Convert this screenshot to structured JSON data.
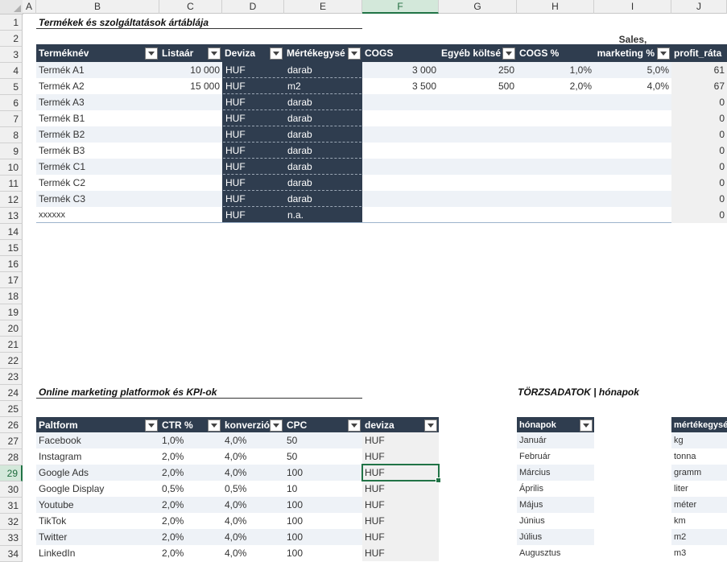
{
  "columns": [
    "A",
    "B",
    "C",
    "D",
    "E",
    "F",
    "G",
    "H",
    "I",
    "J"
  ],
  "rows": [
    "1",
    "2",
    "3",
    "4",
    "5",
    "6",
    "7",
    "8",
    "9",
    "10",
    "11",
    "12",
    "13",
    "14",
    "15",
    "16",
    "17",
    "18",
    "19",
    "20",
    "21",
    "22",
    "23",
    "24",
    "25",
    "26",
    "27",
    "28",
    "29",
    "30",
    "31",
    "32",
    "33",
    "34"
  ],
  "pricelist": {
    "title": "Termékek és szolgáltatások ártáblája",
    "headers": [
      "Terméknév",
      "Listaár",
      "Deviza",
      "Mértékegysé",
      "COGS",
      "Egyéb költsé",
      "COGS %",
      "Sales, marketing %",
      "profit_ráta"
    ],
    "header_sales_line1": "Sales,",
    "header_sales_line2": "marketing %",
    "rows": [
      {
        "name": "Termék A1",
        "price": "10 000",
        "currency": "HUF",
        "unit": "darab",
        "cogs": "3 000",
        "other": "250",
        "cogs_pct": "1,0%",
        "sales_pct": "5,0%",
        "profit": "61"
      },
      {
        "name": "Termék A2",
        "price": "15 000",
        "currency": "HUF",
        "unit": "m2",
        "cogs": "3 500",
        "other": "500",
        "cogs_pct": "2,0%",
        "sales_pct": "4,0%",
        "profit": "67"
      },
      {
        "name": "Termék A3",
        "price": "",
        "currency": "HUF",
        "unit": "darab",
        "cogs": "",
        "other": "",
        "cogs_pct": "",
        "sales_pct": "",
        "profit": "0"
      },
      {
        "name": "Termék B1",
        "price": "",
        "currency": "HUF",
        "unit": "darab",
        "cogs": "",
        "other": "",
        "cogs_pct": "",
        "sales_pct": "",
        "profit": "0"
      },
      {
        "name": "Termék B2",
        "price": "",
        "currency": "HUF",
        "unit": "darab",
        "cogs": "",
        "other": "",
        "cogs_pct": "",
        "sales_pct": "",
        "profit": "0"
      },
      {
        "name": "Termék B3",
        "price": "",
        "currency": "HUF",
        "unit": "darab",
        "cogs": "",
        "other": "",
        "cogs_pct": "",
        "sales_pct": "",
        "profit": "0"
      },
      {
        "name": "Termék C1",
        "price": "",
        "currency": "HUF",
        "unit": "darab",
        "cogs": "",
        "other": "",
        "cogs_pct": "",
        "sales_pct": "",
        "profit": "0"
      },
      {
        "name": "Termék C2",
        "price": "",
        "currency": "HUF",
        "unit": "darab",
        "cogs": "",
        "other": "",
        "cogs_pct": "",
        "sales_pct": "",
        "profit": "0"
      },
      {
        "name": "Termék C3",
        "price": "",
        "currency": "HUF",
        "unit": "darab",
        "cogs": "",
        "other": "",
        "cogs_pct": "",
        "sales_pct": "",
        "profit": "0"
      },
      {
        "name": "xxxxxx",
        "price": "",
        "currency": "HUF",
        "unit": "n.a.",
        "cogs": "",
        "other": "",
        "cogs_pct": "",
        "sales_pct": "",
        "profit": "0"
      }
    ]
  },
  "marketing": {
    "title": "Online marketing platformok és KPI-ok",
    "headers": [
      "Paltform",
      "CTR %",
      "konverzió",
      "CPC",
      "deviza"
    ],
    "rows": [
      {
        "platform": "Facebook",
        "ctr": "1,0%",
        "conv": "4,0%",
        "cpc": "50",
        "currency": "HUF"
      },
      {
        "platform": "Instagram",
        "ctr": "2,0%",
        "conv": "4,0%",
        "cpc": "50",
        "currency": "HUF"
      },
      {
        "platform": "Google Ads",
        "ctr": "2,0%",
        "conv": "4,0%",
        "cpc": "100",
        "currency": "HUF"
      },
      {
        "platform": "Google Display",
        "ctr": "0,5%",
        "conv": "0,5%",
        "cpc": "10",
        "currency": "HUF"
      },
      {
        "platform": "Youtube",
        "ctr": "2,0%",
        "conv": "4,0%",
        "cpc": "100",
        "currency": "HUF"
      },
      {
        "platform": "TikTok",
        "ctr": "2,0%",
        "conv": "4,0%",
        "cpc": "100",
        "currency": "HUF"
      },
      {
        "platform": "Twitter",
        "ctr": "2,0%",
        "conv": "4,0%",
        "cpc": "100",
        "currency": "HUF"
      },
      {
        "platform": "LinkedIn",
        "ctr": "2,0%",
        "conv": "4,0%",
        "cpc": "100",
        "currency": "HUF"
      }
    ]
  },
  "master": {
    "title": "TÖRZSADATOK | hónapok",
    "months_header": "hónapok",
    "months": [
      "Január",
      "Február",
      "Március",
      "Április",
      "Május",
      "Június",
      "Július",
      "Augusztus"
    ],
    "units_header": "mértékegysé",
    "units": [
      "kg",
      "tonna",
      "gramm",
      "liter",
      "méter",
      "km",
      "m2",
      "m3"
    ]
  },
  "colors": {
    "header_dark": "#2f3d4f",
    "band": "#eef2f7",
    "excel_green": "#217346"
  }
}
